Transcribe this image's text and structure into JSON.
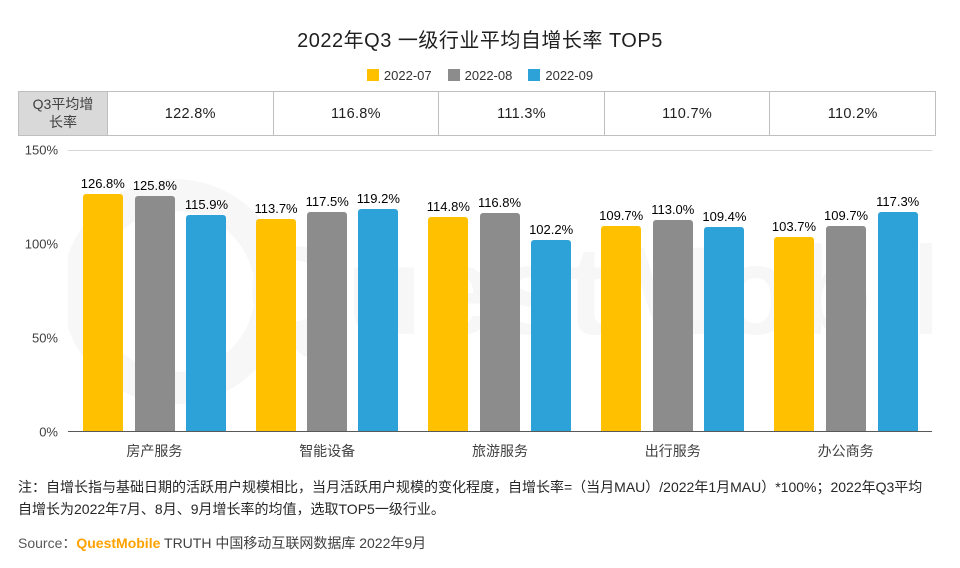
{
  "title": "2022年Q3 一级行业平均自增长率 TOP5",
  "legend": [
    {
      "label": "2022-07",
      "color": "#FFC000"
    },
    {
      "label": "2022-08",
      "color": "#8C8C8C"
    },
    {
      "label": "2022-09",
      "color": "#2DA2D9"
    }
  ],
  "summary_row": {
    "header": "Q3平均增长率",
    "values": [
      "122.8%",
      "116.8%",
      "111.3%",
      "110.7%",
      "110.2%"
    ]
  },
  "chart_data": {
    "type": "bar",
    "title": "2022年Q3 一级行业平均自增长率 TOP5",
    "categories": [
      "房产服务",
      "智能设备",
      "旅游服务",
      "出行服务",
      "办公商务"
    ],
    "series": [
      {
        "name": "2022-07",
        "color": "#FFC000",
        "values": [
          126.8,
          113.7,
          114.8,
          109.7,
          103.7
        ]
      },
      {
        "name": "2022-08",
        "color": "#8C8C8C",
        "values": [
          125.8,
          117.5,
          116.8,
          113.0,
          109.7
        ]
      },
      {
        "name": "2022-09",
        "color": "#2DA2D9",
        "values": [
          115.9,
          119.2,
          102.2,
          109.4,
          117.3
        ]
      }
    ],
    "ylim": [
      0,
      150
    ],
    "yticks": [
      "0%",
      "50%",
      "100%",
      "150%"
    ],
    "ylabel": "",
    "xlabel": "",
    "grid": false,
    "legend_position": "top",
    "value_label_format": "{value}%"
  },
  "footnote": "注：自增长指与基础日期的活跃用户规模相比，当月活跃用户规模的变化程度，自增长率=（当月MAU）/2022年1月MAU）*100%；2022年Q3平均自增长为2022年7月、8月、9月增长率的均值，选取TOP5一级行业。",
  "source": {
    "prefix": "Source：",
    "brand": "QuestMobile",
    "suffix": " TRUTH 中国移动互联网数据库 2022年9月"
  },
  "watermark": "QuestMobile"
}
